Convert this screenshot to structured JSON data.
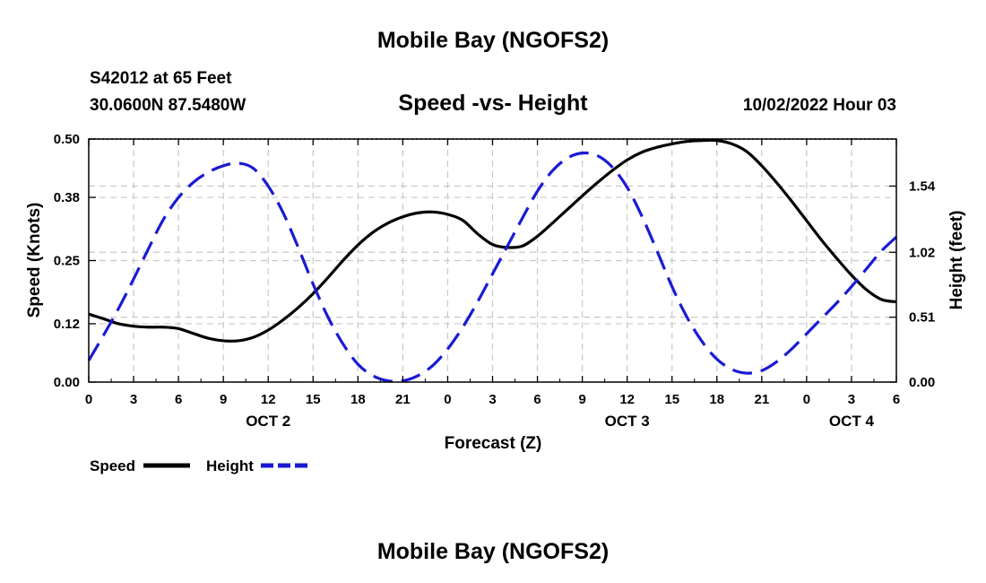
{
  "header": {
    "title": "Mobile Bay (NGOFS2)",
    "station": "S42012 at 65 Feet",
    "coords": "30.0600N  87.5480W",
    "chart_title": "Speed -vs- Height",
    "datetime": "10/02/2022 Hour 03"
  },
  "footer": {
    "title": "Mobile Bay (NGOFS2)"
  },
  "colors": {
    "speed": "#000000",
    "height": "#1a1ad4",
    "grid": "#c8c8c8"
  },
  "chart_data": {
    "type": "line",
    "title": "Speed -vs- Height",
    "xlabel": "Forecast (Z)",
    "ylabel": "Speed (Knots)",
    "y2label": "Height (feet)",
    "xlim": [
      0,
      54
    ],
    "ylim": [
      0,
      0.5
    ],
    "y2lim": [
      0,
      1.91
    ],
    "x_ticks": [
      0,
      3,
      6,
      9,
      12,
      15,
      18,
      21,
      24,
      27,
      30,
      33,
      36,
      39,
      42,
      45,
      48,
      51,
      54
    ],
    "x_tick_labels": [
      "0",
      "3",
      "6",
      "9",
      "12",
      "15",
      "18",
      "21",
      "0",
      "3",
      "6",
      "9",
      "12",
      "15",
      "18",
      "21",
      "0",
      "3",
      "6"
    ],
    "date_labels": [
      {
        "x": 12,
        "label": "OCT 2"
      },
      {
        "x": 36,
        "label": "OCT 3"
      },
      {
        "x": 51,
        "label": "OCT 4"
      }
    ],
    "y_ticks": [
      0,
      0.12,
      0.25,
      0.38,
      0.5
    ],
    "y_tick_labels": [
      "0.00",
      "0.12",
      "0.25",
      "0.38",
      "0.50"
    ],
    "y2_ticks": [
      0,
      0.51,
      1.02,
      1.54
    ],
    "y2_tick_labels": [
      "0.00",
      "0.51",
      "1.02",
      "1.54"
    ],
    "grid": true,
    "series": [
      {
        "name": "Speed",
        "axis": "left",
        "style": "solid",
        "x": [
          0,
          1,
          2,
          3,
          4,
          5,
          6,
          7,
          8,
          9,
          10,
          11,
          12,
          13,
          14,
          15,
          16,
          17,
          18,
          19,
          20,
          21,
          22,
          23,
          24,
          25,
          26,
          27,
          28,
          29,
          30,
          31,
          32,
          33,
          34,
          35,
          36,
          37,
          38,
          39,
          40,
          41,
          42,
          43,
          44,
          45,
          46,
          47,
          48,
          49,
          50,
          51,
          52,
          53,
          54
        ],
        "values": [
          0.14,
          0.13,
          0.12,
          0.115,
          0.113,
          0.113,
          0.11,
          0.1,
          0.09,
          0.085,
          0.085,
          0.092,
          0.107,
          0.128,
          0.153,
          0.182,
          0.215,
          0.25,
          0.282,
          0.308,
          0.327,
          0.34,
          0.348,
          0.35,
          0.345,
          0.333,
          0.305,
          0.283,
          0.277,
          0.28,
          0.3,
          0.327,
          0.355,
          0.383,
          0.41,
          0.435,
          0.457,
          0.473,
          0.483,
          0.49,
          0.495,
          0.497,
          0.497,
          0.49,
          0.474,
          0.445,
          0.41,
          0.372,
          0.332,
          0.292,
          0.255,
          0.22,
          0.19,
          0.17,
          0.165
        ]
      },
      {
        "name": "Height",
        "axis": "right",
        "style": "dashed",
        "x": [
          0,
          1,
          2,
          3,
          4,
          5,
          6,
          7,
          8,
          9,
          10,
          11,
          12,
          13,
          14,
          15,
          16,
          17,
          18,
          19,
          20,
          21,
          22,
          23,
          24,
          25,
          26,
          27,
          28,
          29,
          30,
          31,
          32,
          33,
          34,
          35,
          36,
          37,
          38,
          39,
          40,
          41,
          42,
          43,
          44,
          45,
          46,
          47,
          48,
          49,
          50,
          51,
          52,
          53,
          54
        ],
        "values": [
          0.17,
          0.37,
          0.58,
          0.81,
          1.05,
          1.28,
          1.45,
          1.57,
          1.65,
          1.7,
          1.72,
          1.68,
          1.54,
          1.33,
          1.06,
          0.77,
          0.51,
          0.3,
          0.14,
          0.05,
          0.01,
          0.01,
          0.05,
          0.13,
          0.26,
          0.43,
          0.63,
          0.85,
          1.07,
          1.29,
          1.5,
          1.66,
          1.76,
          1.8,
          1.78,
          1.69,
          1.53,
          1.3,
          1.03,
          0.75,
          0.51,
          0.32,
          0.18,
          0.1,
          0.07,
          0.09,
          0.16,
          0.26,
          0.38,
          0.5,
          0.62,
          0.75,
          0.89,
          1.03,
          1.14
        ]
      }
    ],
    "legend": [
      {
        "label": "Speed",
        "style": "solid"
      },
      {
        "label": "Height",
        "style": "dashed"
      }
    ]
  }
}
